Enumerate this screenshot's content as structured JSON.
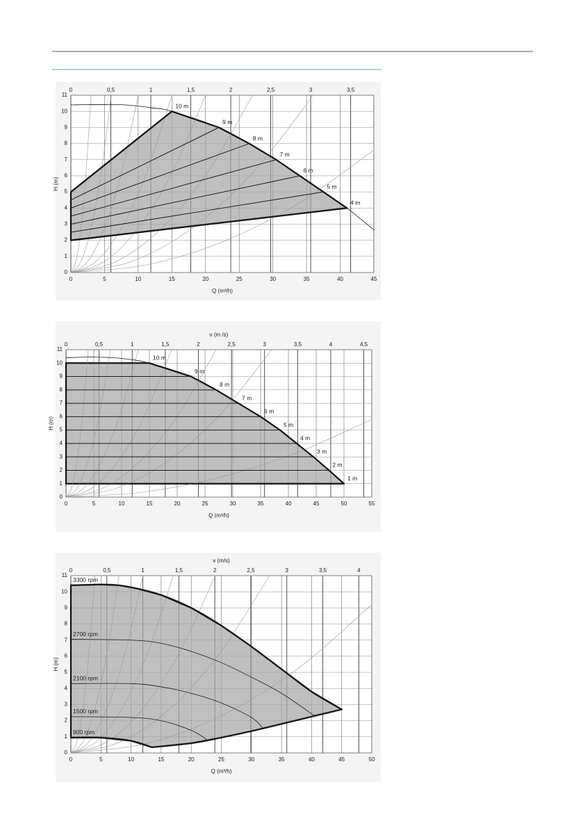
{
  "chart_data": [
    {
      "type": "line",
      "xlabel": "Q (m³/h)",
      "ylabel": "H (m)",
      "grid": true,
      "label_position": "end",
      "xlim": [
        0,
        45
      ],
      "ylim": [
        0,
        11
      ],
      "x2lim": [
        0,
        3.79
      ],
      "xticks": [
        0,
        5,
        10,
        15,
        20,
        25,
        30,
        35,
        40,
        45
      ],
      "yticks": [
        0,
        1,
        2,
        3,
        4,
        5,
        6,
        7,
        8,
        9,
        10,
        11
      ],
      "x2ticks": [
        0,
        {
          "value": 0.5,
          "label": "0,5"
        },
        1,
        {
          "value": 1.5,
          "label": "1,5"
        },
        2,
        {
          "value": 2.5,
          "label": "2,5"
        },
        3,
        {
          "value": 3.5,
          "label": "3,5"
        }
      ],
      "series": [
        {
          "style": "area",
          "color": "#a6a6a6",
          "x": [
            0,
            15,
            22,
            26.5,
            30.5,
            34,
            37.5,
            41,
            0
          ],
          "values": [
            5,
            10,
            9,
            8,
            7,
            6,
            5,
            4,
            2
          ]
        },
        {
          "style": "system",
          "color": "#9a9a9a",
          "x": [
            0,
            0.75,
            1.5,
            2.25,
            3
          ],
          "values": [
            0,
            0.6875,
            2.75,
            6.1875,
            11
          ]
        },
        {
          "style": "system",
          "color": "#9a9a9a",
          "x": [
            0,
            1.5,
            3,
            4.5,
            6
          ],
          "values": [
            0,
            0.6875,
            2.75,
            6.1875,
            11
          ]
        },
        {
          "style": "system",
          "color": "#9a9a9a",
          "x": [
            0,
            2.5,
            5,
            7.5,
            10
          ],
          "values": [
            0,
            0.6875,
            2.75,
            6.1875,
            11
          ]
        },
        {
          "style": "system",
          "color": "#9a9a9a",
          "x": [
            0,
            3.75,
            7.5,
            11.25,
            15
          ],
          "values": [
            0,
            0.6875,
            2.75,
            6.1875,
            11
          ]
        },
        {
          "style": "system",
          "color": "#9a9a9a",
          "x": [
            0,
            5,
            10,
            15,
            20
          ],
          "values": [
            0,
            0.6875,
            2.75,
            6.1875,
            11
          ]
        },
        {
          "style": "system",
          "color": "#9a9a9a",
          "x": [
            0,
            6.75,
            13.5,
            20.25,
            27
          ],
          "values": [
            0,
            0.6875,
            2.75,
            6.1875,
            11
          ]
        },
        {
          "style": "system",
          "color": "#9a9a9a",
          "x": [
            0,
            9,
            18,
            27,
            36
          ],
          "values": [
            0,
            0.6875,
            2.75,
            6.1875,
            11
          ]
        },
        {
          "style": "system",
          "color": "#9a9a9a",
          "x": [
            0,
            11.25,
            22.5,
            33.75,
            45
          ],
          "values": [
            0,
            0.475,
            1.9,
            4.275,
            7.6
          ]
        },
        {
          "style": "thin",
          "color": "#1a1a1a",
          "x": [
            0,
            4,
            8,
            12,
            15,
            22,
            26.5,
            30.5,
            34,
            37.5,
            41,
            45
          ],
          "values": [
            10.4,
            10.42,
            10.4,
            10.22,
            10,
            9,
            8,
            7,
            6,
            5,
            4,
            2.65
          ]
        },
        {
          "name": "10 m",
          "style": "bold",
          "color": "#1a1a1a",
          "x": [
            0,
            15
          ],
          "values": [
            5,
            10
          ]
        },
        {
          "name": "9 m",
          "style": "medium",
          "color": "#1a1a1a",
          "x": [
            0,
            22
          ],
          "values": [
            4.5,
            9
          ]
        },
        {
          "name": "8 m",
          "style": "medium",
          "color": "#1a1a1a",
          "x": [
            0,
            26.5
          ],
          "values": [
            4,
            8
          ]
        },
        {
          "name": "7 m",
          "style": "medium",
          "color": "#1a1a1a",
          "x": [
            0,
            30.5
          ],
          "values": [
            3.5,
            7
          ]
        },
        {
          "name": "6 m",
          "style": "medium",
          "color": "#1a1a1a",
          "x": [
            0,
            34
          ],
          "values": [
            3,
            6
          ]
        },
        {
          "name": "5 m",
          "style": "medium",
          "color": "#1a1a1a",
          "x": [
            0,
            37.5
          ],
          "values": [
            2.5,
            5
          ]
        },
        {
          "name": "4 m",
          "style": "bold",
          "color": "#1a1a1a",
          "x": [
            0,
            41
          ],
          "values": [
            2,
            4
          ]
        }
      ]
    },
    {
      "type": "line",
      "xlabel": "Q (m³/h)",
      "ylabel": "H (m)",
      "x2label": "v (m /s)",
      "grid": true,
      "label_position": "end",
      "xlim": [
        0,
        55
      ],
      "ylim": [
        0,
        11
      ],
      "x2lim": [
        0,
        4.62
      ],
      "xticks": [
        0,
        5,
        10,
        15,
        20,
        25,
        30,
        35,
        40,
        45,
        50,
        55
      ],
      "yticks": [
        0,
        1,
        2,
        3,
        4,
        5,
        6,
        7,
        8,
        9,
        10,
        11
      ],
      "x2ticks": [
        0,
        {
          "value": 0.5,
          "label": "0,5"
        },
        1,
        {
          "value": 1.5,
          "label": "1,5"
        },
        2,
        {
          "value": 2.5,
          "label": "2,5"
        },
        3,
        {
          "value": 3.5,
          "label": "3,5"
        },
        4,
        {
          "value": 4.5,
          "label": "4,5"
        }
      ],
      "series": [
        {
          "style": "area",
          "color": "#a6a6a6",
          "x": [
            0,
            0,
            15,
            22.5,
            27,
            31,
            35,
            38.5,
            41.5,
            44.5,
            47.3,
            50
          ],
          "values": [
            1,
            10,
            10,
            9,
            8,
            7,
            6,
            5,
            4,
            3,
            2,
            1
          ]
        },
        {
          "style": "system",
          "color": "#9a9a9a",
          "x": [
            0,
            1,
            2,
            3,
            4
          ],
          "values": [
            0,
            0.6875,
            2.75,
            6.1875,
            11
          ]
        },
        {
          "style": "system",
          "color": "#9a9a9a",
          "x": [
            0,
            2,
            4,
            6,
            8
          ],
          "values": [
            0,
            0.6875,
            2.75,
            6.1875,
            11
          ]
        },
        {
          "style": "system",
          "color": "#9a9a9a",
          "x": [
            0,
            3.25,
            6.5,
            9.75,
            13
          ],
          "values": [
            0,
            0.6875,
            2.75,
            6.1875,
            11
          ]
        },
        {
          "style": "system",
          "color": "#9a9a9a",
          "x": [
            0,
            4.75,
            9.5,
            14.25,
            19
          ],
          "values": [
            0,
            0.6875,
            2.75,
            6.1875,
            11
          ]
        },
        {
          "style": "system",
          "color": "#9a9a9a",
          "x": [
            0,
            6.75,
            13.5,
            20.25,
            27
          ],
          "values": [
            0,
            0.6875,
            2.75,
            6.1875,
            11
          ]
        },
        {
          "style": "system",
          "color": "#9a9a9a",
          "x": [
            0,
            9.25,
            18.5,
            27.75,
            37
          ],
          "values": [
            0,
            0.6875,
            2.75,
            6.1875,
            11
          ]
        },
        {
          "style": "system",
          "color": "#9a9a9a",
          "x": [
            0,
            13.75,
            27.5,
            41.25,
            55
          ],
          "values": [
            0,
            0.3625,
            1.45,
            3.2625,
            5.8
          ]
        },
        {
          "style": "thin",
          "color": "#1a1a1a",
          "x": [
            0,
            5,
            10,
            15,
            22.5,
            27,
            31,
            35,
            38.5,
            41.5,
            44.5,
            47.3,
            50
          ],
          "values": [
            10.4,
            10.45,
            10.35,
            10,
            9,
            8,
            7,
            6,
            5,
            4,
            3,
            2,
            1
          ]
        },
        {
          "name": "10 m",
          "style": "medium",
          "color": "#1a1a1a",
          "x": [
            0,
            15
          ],
          "values": [
            10,
            10
          ]
        },
        {
          "name": "9 m",
          "style": "medium",
          "color": "#1a1a1a",
          "x": [
            0,
            22.5
          ],
          "values": [
            9,
            9
          ]
        },
        {
          "name": "8 m",
          "style": "medium",
          "color": "#1a1a1a",
          "x": [
            0,
            27
          ],
          "values": [
            8,
            8
          ]
        },
        {
          "name": "7 m",
          "style": "medium",
          "color": "#1a1a1a",
          "x": [
            0,
            31
          ],
          "values": [
            7,
            7
          ]
        },
        {
          "name": "6 m",
          "style": "medium",
          "color": "#1a1a1a",
          "x": [
            0,
            35
          ],
          "values": [
            6,
            6
          ]
        },
        {
          "name": "5 m",
          "style": "medium",
          "color": "#1a1a1a",
          "x": [
            0,
            38.5
          ],
          "values": [
            5,
            5
          ]
        },
        {
          "name": "4 m",
          "style": "medium",
          "color": "#1a1a1a",
          "x": [
            0,
            41.5
          ],
          "values": [
            4,
            4
          ]
        },
        {
          "name": "3 m",
          "style": "medium",
          "color": "#1a1a1a",
          "x": [
            0,
            44.5
          ],
          "values": [
            3,
            3
          ]
        },
        {
          "name": "2 m",
          "style": "medium",
          "color": "#1a1a1a",
          "x": [
            0,
            47.3
          ],
          "values": [
            2,
            2
          ]
        },
        {
          "name": "1 m",
          "style": "medium",
          "color": "#1a1a1a",
          "x": [
            0,
            50
          ],
          "values": [
            1,
            1
          ]
        }
      ]
    },
    {
      "type": "line",
      "xlabel": "Q (m³/h)",
      "ylabel": "H (m)",
      "x2label": "v (m/s)",
      "grid": true,
      "label_position": "start",
      "xlim": [
        0,
        50
      ],
      "ylim": [
        0,
        11
      ],
      "x2lim": [
        0,
        4.18
      ],
      "xticks": [
        0,
        5,
        10,
        15,
        20,
        25,
        30,
        35,
        40,
        45,
        50
      ],
      "yticks": [
        0,
        1,
        2,
        3,
        4,
        5,
        6,
        7,
        8,
        9,
        10,
        11
      ],
      "x2ticks": [
        0,
        {
          "value": 0.5,
          "label": "0,5"
        },
        1,
        {
          "value": 1.5,
          "label": "1,5"
        },
        2,
        {
          "value": 2.5,
          "label": "2,5"
        },
        3,
        {
          "value": 3.5,
          "label": "3,5"
        },
        4
      ],
      "series": [
        {
          "style": "area",
          "color": "#a6a6a6",
          "x": [
            0,
            5,
            8,
            11,
            15,
            20,
            25,
            30,
            35,
            40,
            45,
            40,
            35,
            30,
            25,
            20,
            13.5,
            10,
            5,
            0
          ],
          "values": [
            10.4,
            10.45,
            10.4,
            10.2,
            9.8,
            9,
            7.9,
            6.6,
            5.2,
            3.8,
            2.7,
            2.25,
            1.8,
            1.35,
            0.95,
            0.6,
            0.35,
            0.75,
            0.95,
            0.95
          ]
        },
        {
          "style": "system",
          "color": "#9a9a9a",
          "x": [
            0,
            1,
            2,
            3,
            4
          ],
          "values": [
            0,
            0.6875,
            2.75,
            6.1875,
            11
          ]
        },
        {
          "style": "system",
          "color": "#9a9a9a",
          "x": [
            0,
            2,
            4,
            6,
            8
          ],
          "values": [
            0,
            0.6875,
            2.75,
            6.1875,
            11
          ]
        },
        {
          "style": "system",
          "color": "#9a9a9a",
          "x": [
            0,
            3,
            6,
            9,
            12
          ],
          "values": [
            0,
            0.6875,
            2.75,
            6.1875,
            11
          ]
        },
        {
          "style": "system",
          "color": "#9a9a9a",
          "x": [
            0,
            4.25,
            8.5,
            12.75,
            17
          ],
          "values": [
            0,
            0.6875,
            2.75,
            6.1875,
            11
          ]
        },
        {
          "style": "system",
          "color": "#9a9a9a",
          "x": [
            0,
            6,
            12,
            18,
            24
          ],
          "values": [
            0,
            0.6875,
            2.75,
            6.1875,
            11
          ]
        },
        {
          "style": "system",
          "color": "#9a9a9a",
          "x": [
            0,
            8.25,
            16.5,
            24.75,
            33
          ],
          "values": [
            0,
            0.6875,
            2.75,
            6.1875,
            11
          ]
        },
        {
          "style": "system",
          "color": "#9a9a9a",
          "x": [
            0,
            12.5,
            25,
            37.5,
            50
          ],
          "values": [
            0,
            0.575,
            2.3,
            5.175,
            9.2
          ]
        },
        {
          "name": "3300 rpm",
          "style": "bold",
          "color": "#1a1a1a",
          "x": [
            0,
            5,
            8,
            11,
            15,
            20,
            25,
            30,
            35,
            40,
            45
          ],
          "values": [
            10.4,
            10.45,
            10.4,
            10.2,
            9.8,
            9,
            7.9,
            6.6,
            5.2,
            3.8,
            2.7
          ]
        },
        {
          "name": "2700 rpm",
          "style": "thin",
          "color": "#1a1a1a",
          "x": [
            0,
            10,
            15,
            20,
            25,
            30,
            35,
            40.5
          ],
          "values": [
            7.05,
            7,
            6.8,
            6.3,
            5.6,
            4.7,
            3.7,
            2.3
          ]
        },
        {
          "name": "2100 rpm",
          "style": "thin",
          "color": "#1a1a1a",
          "x": [
            0,
            10,
            15,
            20,
            25,
            30,
            32
          ],
          "values": [
            4.3,
            4.3,
            4.1,
            3.7,
            3.1,
            2.2,
            1.5
          ]
        },
        {
          "name": "1500 rpm",
          "style": "thin",
          "color": "#1a1a1a",
          "x": [
            0,
            10,
            15,
            20,
            22.5
          ],
          "values": [
            2.25,
            2.2,
            2,
            1.4,
            0.85
          ]
        },
        {
          "name": "900 rpm",
          "style": "bold",
          "color": "#1a1a1a",
          "x": [
            0,
            5,
            10,
            13.5
          ],
          "values": [
            0.95,
            0.95,
            0.75,
            0.35
          ]
        },
        {
          "style": "bold",
          "color": "#1a1a1a",
          "x": [
            13.5,
            20,
            25,
            30,
            35,
            40,
            45
          ],
          "values": [
            0.35,
            0.6,
            0.95,
            1.35,
            1.8,
            2.25,
            2.7
          ]
        }
      ]
    }
  ]
}
